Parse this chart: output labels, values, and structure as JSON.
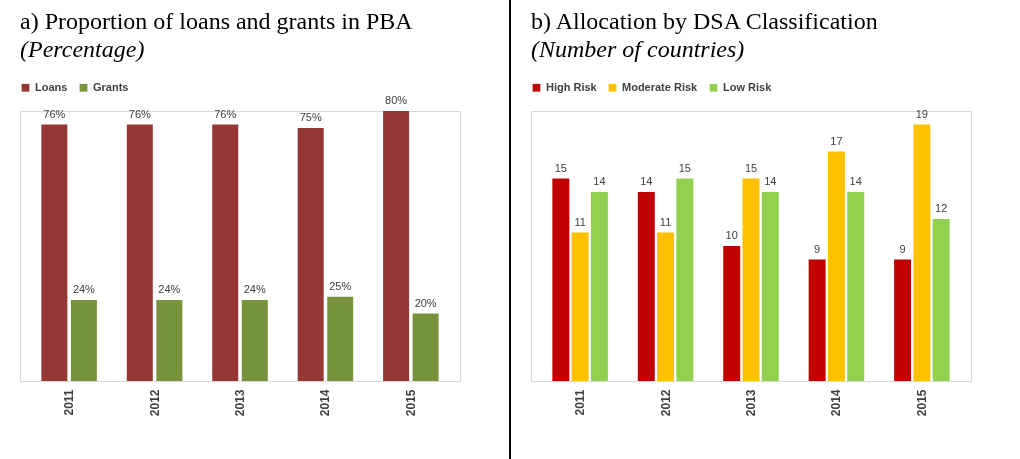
{
  "chart_data": [
    {
      "type": "bar",
      "title": "a)  Proportion of loans and grants in PBA",
      "subtitle": "(Percentage)",
      "categories": [
        "2011",
        "2012",
        "2013",
        "2014",
        "2015"
      ],
      "legend": "top",
      "grid": false,
      "series": [
        {
          "name": "Loans",
          "color": "#953735",
          "values": [
            76,
            76,
            76,
            75,
            80
          ],
          "value_labels": [
            "76%",
            "76%",
            "76%",
            "75%",
            "80%"
          ]
        },
        {
          "name": "Grants",
          "color": "#77933c",
          "values": [
            24,
            24,
            24,
            25,
            20
          ],
          "value_labels": [
            "24%",
            "24%",
            "24%",
            "25%",
            "20%"
          ]
        }
      ]
    },
    {
      "type": "bar",
      "title": "b)  Allocation by DSA Classification",
      "subtitle": "(Number of countries)",
      "categories": [
        "2011",
        "2012",
        "2013",
        "2014",
        "2015"
      ],
      "legend": "top",
      "grid": false,
      "data_labels": true,
      "series": [
        {
          "name": "High Risk",
          "color": "#c00000",
          "values": [
            15,
            14,
            10,
            9,
            9
          ]
        },
        {
          "name": "Moderate Risk",
          "color": "#ffc000",
          "values": [
            11,
            11,
            15,
            17,
            19
          ]
        },
        {
          "name": "Low Risk",
          "color": "#92d050",
          "values": [
            14,
            15,
            14,
            14,
            12
          ]
        }
      ]
    }
  ]
}
